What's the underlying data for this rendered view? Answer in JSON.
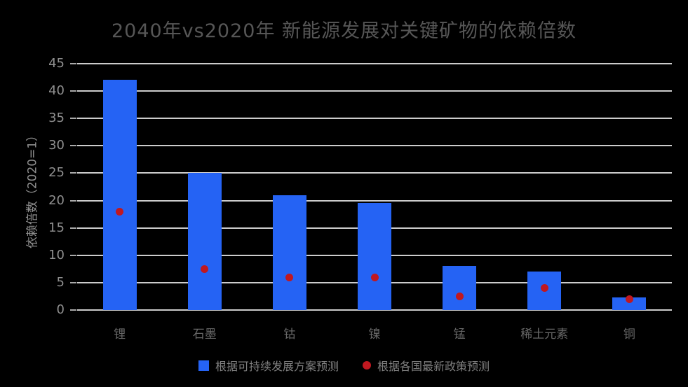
{
  "title": "2040年vs2020年 新能源发展对关键矿物的依赖倍数",
  "chart_data": {
    "type": "bar",
    "title": "2040年vs2020年 新能源发展对关键矿物的依赖倍数",
    "categories": [
      "锂",
      "石墨",
      "钴",
      "镍",
      "锰",
      "稀土元素",
      "铜"
    ],
    "series": [
      {
        "name": "根据可持续发展方案预测",
        "marker": "bar",
        "color": "#2563f4",
        "values": [
          42,
          25,
          21,
          19.5,
          8,
          7,
          2.3
        ]
      },
      {
        "name": "根据各国最新政策预测",
        "marker": "dot",
        "color": "#c01820",
        "values": [
          18,
          7.5,
          6,
          6,
          2.5,
          4,
          2
        ]
      }
    ],
    "xlabel": "",
    "ylabel": "依赖倍数（2020=1）",
    "ylim": [
      0,
      45
    ],
    "yticks": [
      0,
      5,
      10,
      15,
      20,
      25,
      30,
      35,
      40,
      45
    ],
    "grid": "horizontal",
    "legend_position": "bottom"
  },
  "colors": {
    "background": "#000000",
    "bar": "#2563f4",
    "dot": "#c01820",
    "gridline": "#cccccc",
    "tick_mark": "#a9a9a9",
    "title_text": "#565656",
    "tick_text": "#8f8f8f",
    "xlabel_text": "#686868",
    "legend_text": "#7f7f7f"
  }
}
